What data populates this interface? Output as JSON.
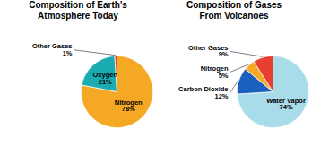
{
  "chart_data": [
    {
      "type": "pie",
      "title": "Composition of Earth’s\nAtmosphere Today",
      "categories": [
        "Nitrogen",
        "Oxygen",
        "Other Gases"
      ],
      "values": [
        78,
        21,
        1
      ],
      "value_labels": [
        "78%",
        "21%",
        "1%"
      ],
      "colors": [
        "#F5A823",
        "#1AACB0",
        "#E84030"
      ],
      "data_labels": true
    },
    {
      "type": "pie",
      "title": "Composition of Gases\nFrom Volcanoes",
      "categories": [
        "Water Vapor",
        "Carbon Dioxide",
        "Nitrogen",
        "Other Gases"
      ],
      "values": [
        74,
        12,
        5,
        9
      ],
      "value_labels": [
        "74%",
        "12%",
        "5%",
        "9%"
      ],
      "colors": [
        "#A8DCE8",
        "#1B5FBF",
        "#F5A823",
        "#E84030"
      ],
      "data_labels": true
    }
  ]
}
